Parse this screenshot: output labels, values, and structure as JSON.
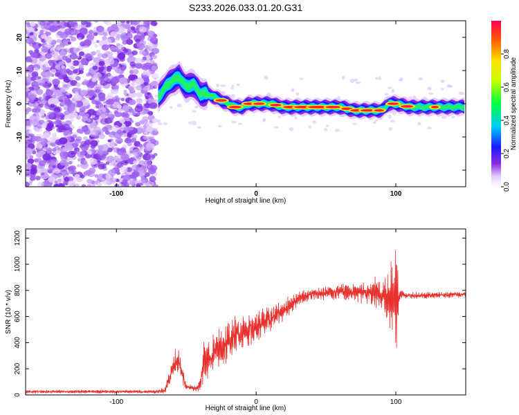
{
  "title": "S233.2026.033.01.20.G31",
  "chart_data": [
    {
      "type": "heatmap",
      "xlabel": "Height of straight line (km)",
      "ylabel": "Frequency (Hz)",
      "xlim": [
        -165,
        150
      ],
      "ylim": [
        -25,
        25
      ],
      "xticks": [
        -100,
        0,
        100
      ],
      "yticks": [
        -20,
        -10,
        0,
        10,
        20
      ],
      "colorbar": {
        "label": "Normalized spectral amplitude",
        "range": [
          0,
          1
        ],
        "ticks": [
          "0.0",
          "0.2",
          "0.4",
          "0.6",
          "0.8"
        ]
      },
      "ridge": {
        "x": [
          -70,
          -65,
          -60,
          -55,
          -50,
          -45,
          -40,
          -35,
          -30,
          -25,
          -20,
          -15,
          -10,
          -5,
          0,
          10,
          20,
          30,
          40,
          50,
          60,
          70,
          80,
          90,
          95,
          100,
          110,
          120,
          130,
          150
        ],
        "freq": [
          2,
          5,
          7,
          8,
          5,
          6,
          3,
          3,
          2,
          1,
          0,
          -1,
          -1,
          0,
          0,
          0,
          -1,
          -1,
          -1,
          -1,
          -1,
          -2,
          -2,
          -2,
          0,
          0,
          -1,
          -1,
          -1,
          -1
        ]
      }
    },
    {
      "type": "line",
      "xlabel": "Height of straight line (km)",
      "ylabel": "SNR (10 * v/v)",
      "xlim": [
        -165,
        150
      ],
      "ylim": [
        0,
        1270
      ],
      "xticks": [
        -100,
        0,
        100
      ],
      "yticks": [
        0,
        200,
        400,
        600,
        800,
        1000,
        1200
      ],
      "envelope": {
        "x": [
          -165,
          -70,
          -65,
          -60,
          -57,
          -55,
          -52,
          -50,
          -45,
          -42,
          -40,
          -37,
          -35,
          -30,
          -25,
          -20,
          -15,
          -10,
          0,
          10,
          20,
          30,
          40,
          60,
          80,
          90,
          95,
          98,
          100,
          102,
          105,
          110,
          150
        ],
        "mean": [
          25,
          25,
          40,
          200,
          280,
          240,
          120,
          60,
          50,
          50,
          80,
          300,
          250,
          320,
          360,
          400,
          460,
          480,
          520,
          580,
          650,
          740,
          770,
          790,
          780,
          770,
          760,
          740,
          700,
          760,
          770,
          760,
          770
        ],
        "amp": [
          12,
          12,
          30,
          80,
          100,
          80,
          60,
          30,
          25,
          25,
          60,
          180,
          140,
          150,
          150,
          150,
          130,
          120,
          110,
          100,
          80,
          50,
          45,
          60,
          90,
          150,
          200,
          350,
          500,
          80,
          30,
          25,
          25
        ]
      },
      "series": [
        {
          "name": "SNR",
          "color": "#e8302c"
        }
      ]
    }
  ],
  "colors": {
    "line": "#e8302c",
    "noise": "#7a2be0"
  }
}
